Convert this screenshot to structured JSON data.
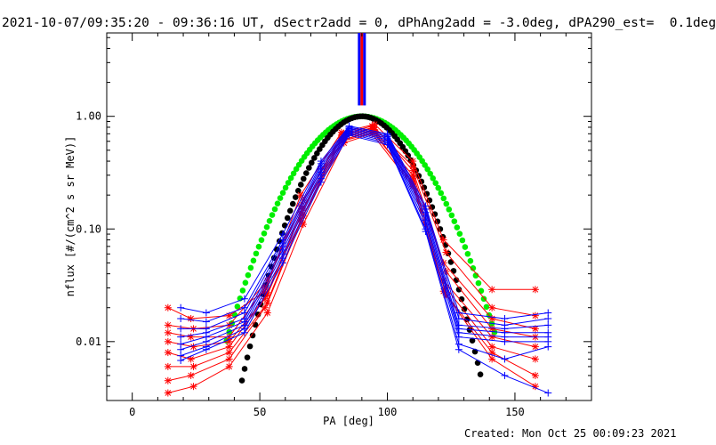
{
  "title": "2021-10-07/09:35:20 - 09:36:16 UT, dSectr2add = 0, dPhAng2add = -3.0deg, dPA290_est=  0.1deg",
  "footer": "Created: Mon Oct 25 00:09:23 2021",
  "chart_data": {
    "type": "scatter",
    "title": "2021-10-07/09:35:20 - 09:36:16 UT, dSectr2add = 0, dPhAng2add = -3.0deg, dPA290_est=  0.1deg",
    "xlabel": "PA [deg]",
    "ylabel": "nflux [#/(cm^2 s sr MeV)]",
    "xlim": [
      -10,
      180
    ],
    "ylim": [
      0.003,
      5.5
    ],
    "yscale": "log",
    "x_ticks": [
      0,
      50,
      100,
      150
    ],
    "x_tick_labels": [
      "0",
      "50",
      "100",
      "150"
    ],
    "y_ticks": [
      0.01,
      0.1,
      1.0
    ],
    "y_tick_labels": [
      "0.01",
      "0.10",
      "1.00"
    ],
    "colors": {
      "red": "#ff0000",
      "blue": "#0000ff",
      "green": "#00ee00",
      "black": "#000000"
    },
    "vertical_marker": {
      "x": 90,
      "colors": [
        "#0000ff",
        "#ff0000",
        "#0000ff"
      ]
    },
    "fit_curves": [
      {
        "color": "#00ee00",
        "peak": 1.0,
        "center": 90,
        "sigma": 17.5,
        "x_range": [
          37,
          143
        ]
      },
      {
        "color": "#000000",
        "peak": 1.0,
        "center": 90,
        "sigma": 14.3,
        "x_range": [
          43,
          137
        ]
      }
    ],
    "series": [
      {
        "color": "#ff0000",
        "marker": "*",
        "x": [
          14,
          23,
          38,
          52,
          66,
          82,
          95,
          110,
          122,
          141,
          158
        ],
        "y": [
          0.02,
          0.016,
          0.017,
          0.028,
          0.2,
          0.72,
          0.85,
          0.4,
          0.08,
          0.029,
          0.029
        ]
      },
      {
        "color": "#ff0000",
        "marker": "*",
        "x": [
          14,
          24,
          38,
          53,
          67,
          83,
          94,
          110,
          123,
          141,
          158
        ],
        "y": [
          0.014,
          0.013,
          0.014,
          0.035,
          0.18,
          0.7,
          0.82,
          0.36,
          0.062,
          0.02,
          0.017
        ]
      },
      {
        "color": "#ff0000",
        "marker": "*",
        "x": [
          14,
          23,
          38,
          52,
          66,
          82,
          95,
          110,
          122,
          141,
          158
        ],
        "y": [
          0.012,
          0.011,
          0.011,
          0.03,
          0.16,
          0.68,
          0.8,
          0.33,
          0.05,
          0.016,
          0.013
        ]
      },
      {
        "color": "#ff0000",
        "marker": "*",
        "x": [
          14,
          24,
          38,
          53,
          67,
          83,
          94,
          110,
          123,
          141,
          158
        ],
        "y": [
          0.01,
          0.009,
          0.01,
          0.026,
          0.15,
          0.66,
          0.78,
          0.3,
          0.042,
          0.013,
          0.011
        ]
      },
      {
        "color": "#ff0000",
        "marker": "*",
        "x": [
          14,
          23,
          38,
          52,
          66,
          82,
          95,
          110,
          122,
          141,
          158
        ],
        "y": [
          0.008,
          0.007,
          0.009,
          0.024,
          0.14,
          0.64,
          0.76,
          0.28,
          0.035,
          0.011,
          0.009
        ]
      },
      {
        "color": "#ff0000",
        "marker": "*",
        "x": [
          14,
          24,
          38,
          53,
          67,
          83,
          94,
          110,
          123,
          141,
          158
        ],
        "y": [
          0.006,
          0.006,
          0.008,
          0.022,
          0.13,
          0.62,
          0.74,
          0.26,
          0.03,
          0.009,
          0.007
        ]
      },
      {
        "color": "#ff0000",
        "marker": "*",
        "x": [
          14,
          23,
          38,
          52,
          66,
          82,
          95,
          110,
          122,
          141,
          158
        ],
        "y": [
          0.0045,
          0.005,
          0.007,
          0.02,
          0.12,
          0.6,
          0.72,
          0.25,
          0.028,
          0.008,
          0.005
        ]
      },
      {
        "color": "#ff0000",
        "marker": "*",
        "x": [
          14,
          24,
          38,
          53,
          67,
          83,
          94,
          110,
          123,
          141,
          158
        ],
        "y": [
          0.0035,
          0.004,
          0.006,
          0.018,
          0.11,
          0.58,
          0.7,
          0.24,
          0.026,
          0.007,
          0.004
        ]
      },
      {
        "color": "#0000ff",
        "marker": "+",
        "x": [
          19,
          29,
          44,
          59,
          74,
          85,
          100,
          115,
          128,
          146,
          163
        ],
        "y": [
          0.02,
          0.018,
          0.024,
          0.09,
          0.4,
          0.82,
          0.7,
          0.16,
          0.018,
          0.016,
          0.018
        ]
      },
      {
        "color": "#0000ff",
        "marker": "+",
        "x": [
          19,
          29,
          44,
          59,
          74,
          85,
          100,
          115,
          128,
          146,
          163
        ],
        "y": [
          0.016,
          0.015,
          0.02,
          0.08,
          0.38,
          0.8,
          0.68,
          0.15,
          0.016,
          0.014,
          0.016
        ]
      },
      {
        "color": "#0000ff",
        "marker": "+",
        "x": [
          19,
          29,
          44,
          59,
          74,
          85,
          100,
          115,
          128,
          146,
          163
        ],
        "y": [
          0.013,
          0.013,
          0.018,
          0.075,
          0.36,
          0.78,
          0.66,
          0.14,
          0.014,
          0.013,
          0.014
        ]
      },
      {
        "color": "#0000ff",
        "marker": "+",
        "x": [
          19,
          29,
          44,
          59,
          74,
          85,
          100,
          115,
          128,
          146,
          163
        ],
        "y": [
          0.011,
          0.012,
          0.016,
          0.07,
          0.34,
          0.76,
          0.64,
          0.13,
          0.013,
          0.012,
          0.012
        ]
      },
      {
        "color": "#0000ff",
        "marker": "+",
        "x": [
          19,
          29,
          44,
          59,
          74,
          85,
          100,
          115,
          128,
          146,
          163
        ],
        "y": [
          0.0095,
          0.011,
          0.015,
          0.065,
          0.32,
          0.74,
          0.62,
          0.12,
          0.012,
          0.011,
          0.011
        ]
      },
      {
        "color": "#0000ff",
        "marker": "+",
        "x": [
          19,
          29,
          44,
          59,
          74,
          85,
          100,
          115,
          128,
          146,
          163
        ],
        "y": [
          0.0085,
          0.01,
          0.014,
          0.06,
          0.3,
          0.72,
          0.6,
          0.11,
          0.011,
          0.01,
          0.01
        ]
      },
      {
        "color": "#0000ff",
        "marker": "+",
        "x": [
          19,
          29,
          44,
          59,
          74,
          85,
          100,
          115,
          128,
          146,
          163
        ],
        "y": [
          0.0075,
          0.009,
          0.013,
          0.055,
          0.28,
          0.7,
          0.58,
          0.1,
          0.0095,
          0.007,
          0.009
        ]
      },
      {
        "color": "#0000ff",
        "marker": "+",
        "x": [
          19,
          29,
          44,
          59,
          74,
          85,
          100,
          115,
          128,
          146,
          163
        ],
        "y": [
          0.0068,
          0.0085,
          0.012,
          0.05,
          0.26,
          0.68,
          0.56,
          0.095,
          0.0085,
          0.005,
          0.0035
        ]
      }
    ]
  }
}
